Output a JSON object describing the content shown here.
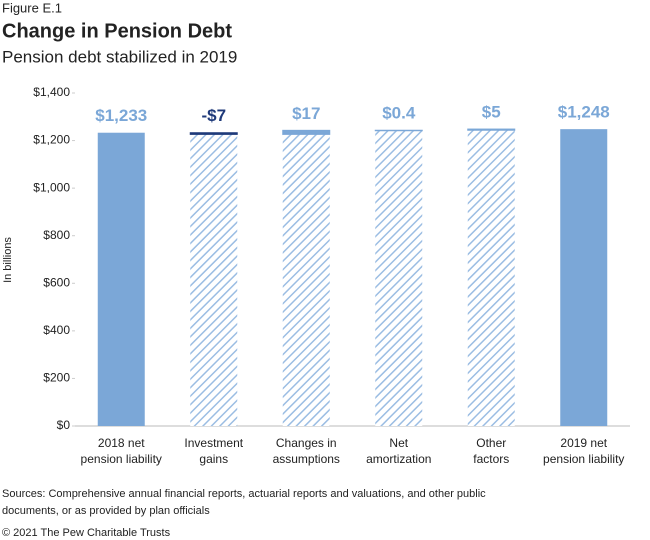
{
  "figure_label": "Figure E.1",
  "chart_data": {
    "type": "waterfall",
    "title": "Change in Pension Debt",
    "subtitle": "Pension debt stabilized in 2019",
    "y_label": "In billions",
    "categories": [
      [
        "2018 net",
        "pension liability"
      ],
      [
        "Investment",
        "gains"
      ],
      [
        "Changes in",
        "assumptions"
      ],
      [
        "Net",
        "amortization"
      ],
      [
        "Other",
        "factors"
      ],
      [
        "2019 net",
        "pension liability"
      ]
    ],
    "values": [
      1233,
      -7,
      17,
      0.4,
      5,
      1248
    ],
    "value_labels": [
      "$1,233",
      "-$7",
      "$17",
      "$0.4",
      "$5",
      "$1,248"
    ],
    "is_total": [
      true,
      false,
      false,
      false,
      false,
      true
    ],
    "color": "#7ba7d7",
    "negative_color": "#1f3a7a",
    "ylim": [
      0,
      1400
    ],
    "yticks": [
      {
        "value": 0,
        "label": "$0"
      },
      {
        "value": 200,
        "label": "$200"
      },
      {
        "value": 400,
        "label": "$400"
      },
      {
        "value": 600,
        "label": "$600"
      },
      {
        "value": 800,
        "label": "$800"
      },
      {
        "value": 1000,
        "label": "$1,000"
      },
      {
        "value": 1200,
        "label": "$1,200"
      },
      {
        "value": 1400,
        "label": "$1,400"
      }
    ]
  },
  "sources": [
    "Sources: Comprehensive annual financial reports, actuarial reports and valuations, and other public",
    "documents, or as provided by plan officials"
  ],
  "copyright": "© 2021 The Pew Charitable Trusts"
}
